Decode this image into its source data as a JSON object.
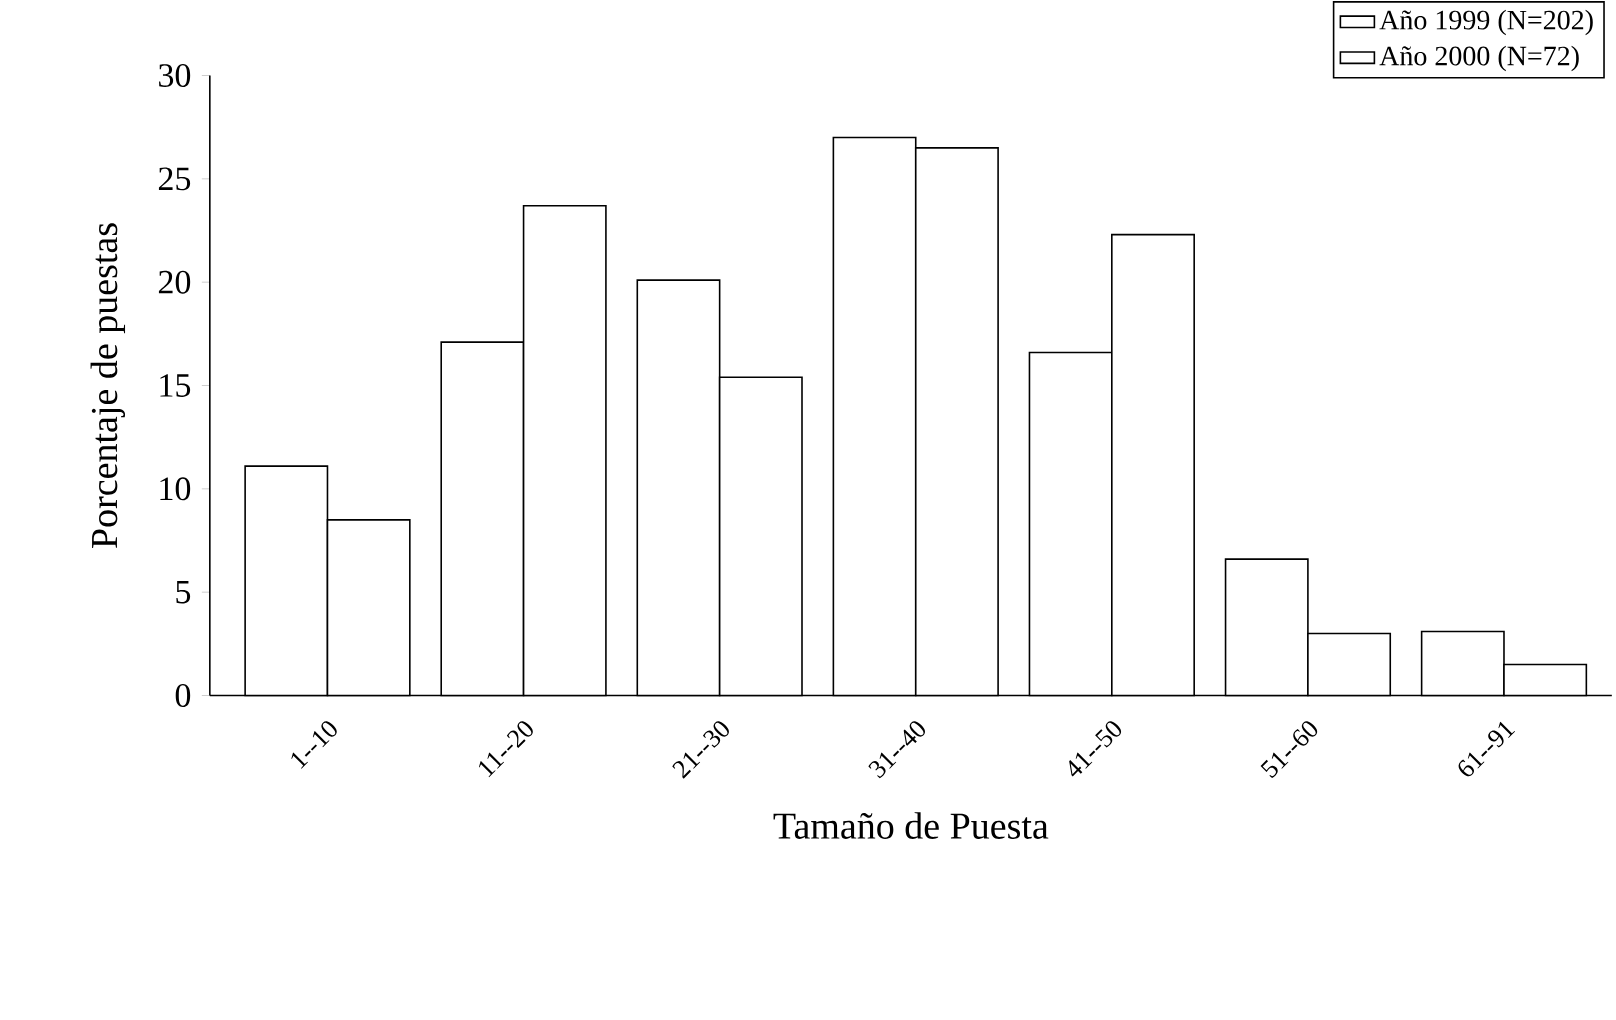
{
  "chart_data": {
    "type": "bar",
    "xlabel": "Tamaño de Puesta",
    "ylabel": "Porcentaje de puestas",
    "categories": [
      "1--10",
      "11--20",
      "21--30",
      "31--40",
      "41--50",
      "51--60",
      "61--91"
    ],
    "series": [
      {
        "name": "Año 1999 (N=202)",
        "color": "#ffffff",
        "values": [
          11.1,
          17.1,
          20.1,
          27.0,
          16.6,
          6.6,
          3.1
        ]
      },
      {
        "name": "Año 2000 (N=72)",
        "color": "#ffffff",
        "values": [
          8.5,
          23.7,
          15.4,
          26.5,
          22.3,
          3.0,
          1.5
        ]
      }
    ],
    "ylim": [
      0,
      30
    ],
    "yticks": [
      0,
      5,
      10,
      15,
      20,
      25,
      30
    ],
    "legend": "top right",
    "grid": false
  }
}
